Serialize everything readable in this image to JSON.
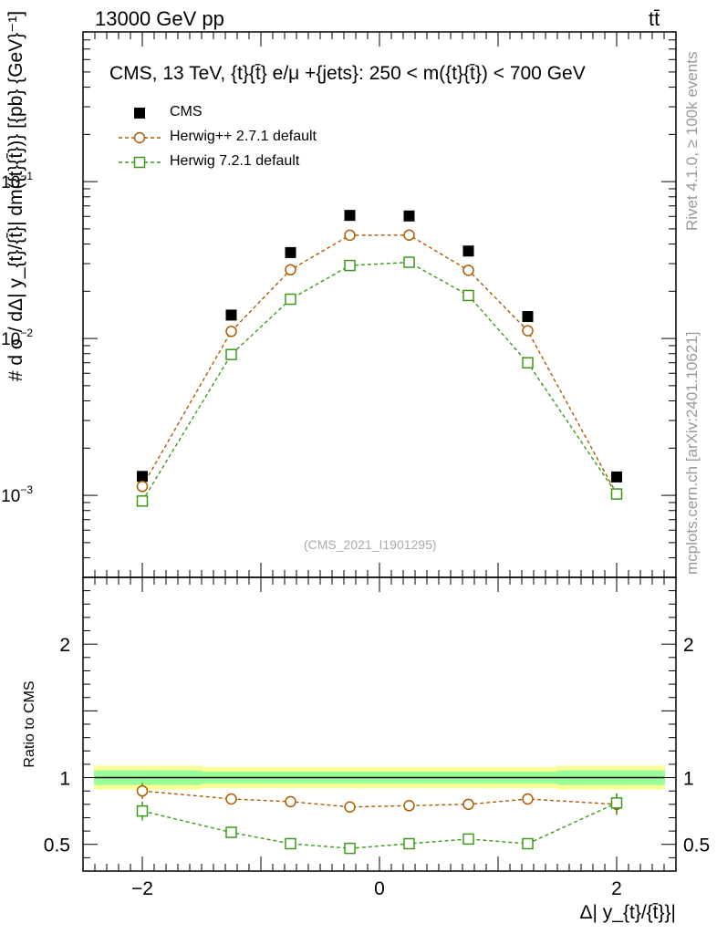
{
  "header": {
    "energy": "13000 GeV pp",
    "process": "tt̄"
  },
  "side_labels": {
    "rivet": "Rivet 4.1.0, ≥ 100k events",
    "mcplots": "mcplots.cern.ch [arXiv:2401.10621]"
  },
  "watermark": "(CMS_2021_I1901295)",
  "colors": {
    "cms": "#000000",
    "herwigpp": "#b05a00",
    "herwig7": "#3c9a19",
    "band_outer": "#ffff99",
    "band_inner": "#99ff99"
  },
  "chart_data": [
    {
      "type": "scatter",
      "title": "CMS, 13 TeV, {t}{t̄} e/μ +{jets}: 250 < m({t}{t̄}) < 700 GeV",
      "ylabel": "# d σ / dΔ| y_{t}/{t̄}| dm({t}{t̄})} [{pb} {GeV}⁻¹]",
      "yscale": "log",
      "ylim": [
        0.0003,
        0.9
      ],
      "xlim": [
        -2.5,
        2.5
      ],
      "y_ticks": [
        0.001,
        0.01,
        0.1
      ],
      "y_tick_labels": [
        "10^-3",
        "10^-2",
        "10^-1"
      ],
      "legend": [
        "CMS",
        "Herwig++ 2.7.1 default",
        "Herwig 7.2.1 default"
      ],
      "x": [
        -2.0,
        -1.25,
        -0.75,
        -0.25,
        0.25,
        0.75,
        1.25,
        2.0
      ],
      "series": [
        {
          "name": "CMS",
          "values": [
            0.00132,
            0.0141,
            0.0353,
            0.0609,
            0.0604,
            0.0361,
            0.0138,
            0.00131
          ]
        },
        {
          "name": "Herwig++ 2.7.1 default",
          "values": [
            0.00114,
            0.0111,
            0.0274,
            0.0455,
            0.0456,
            0.0272,
            0.0112,
            0.00102
          ]
        },
        {
          "name": "Herwig 7.2.1 default",
          "values": [
            0.00092,
            0.0079,
            0.0178,
            0.0292,
            0.0306,
            0.0188,
            0.007,
            0.00102
          ]
        }
      ]
    },
    {
      "type": "scatter",
      "ylabel": "Ratio to CMS",
      "xlabel": "Δ| y_{t}/{t̄}}|",
      "ylim": [
        0.3,
        2.5
      ],
      "xlim": [
        -2.5,
        2.5
      ],
      "y_ticks": [
        0.5,
        1,
        2
      ],
      "y_tick_labels": [
        "0.5",
        "1",
        "2"
      ],
      "x_ticks": [
        -2,
        0,
        2
      ],
      "x_tick_labels": [
        "−2",
        "0",
        "2"
      ],
      "reference_band": {
        "x_edges": [
          -2.5,
          -1.5,
          1.5,
          2.5
        ],
        "outer_half_width": [
          0.09,
          0.08,
          0.09
        ],
        "inner_half_width": [
          0.055,
          0.045,
          0.055
        ]
      },
      "x": [
        -2.0,
        -1.25,
        -0.75,
        -0.25,
        0.25,
        0.75,
        1.25,
        2.0
      ],
      "series": [
        {
          "name": "Herwig++ 2.7.1 default",
          "values": [
            0.9,
            0.84,
            0.82,
            0.78,
            0.79,
            0.8,
            0.84,
            0.8
          ],
          "errors": [
            0.06,
            0.03,
            0.015,
            0.01,
            0.01,
            0.015,
            0.03,
            0.08
          ]
        },
        {
          "name": "Herwig 7.2.1 default",
          "values": [
            0.75,
            0.59,
            0.505,
            0.47,
            0.505,
            0.54,
            0.505,
            0.81
          ],
          "errors": [
            0.07,
            0.03,
            0.015,
            0.01,
            0.01,
            0.015,
            0.03,
            0.07
          ]
        }
      ]
    }
  ]
}
